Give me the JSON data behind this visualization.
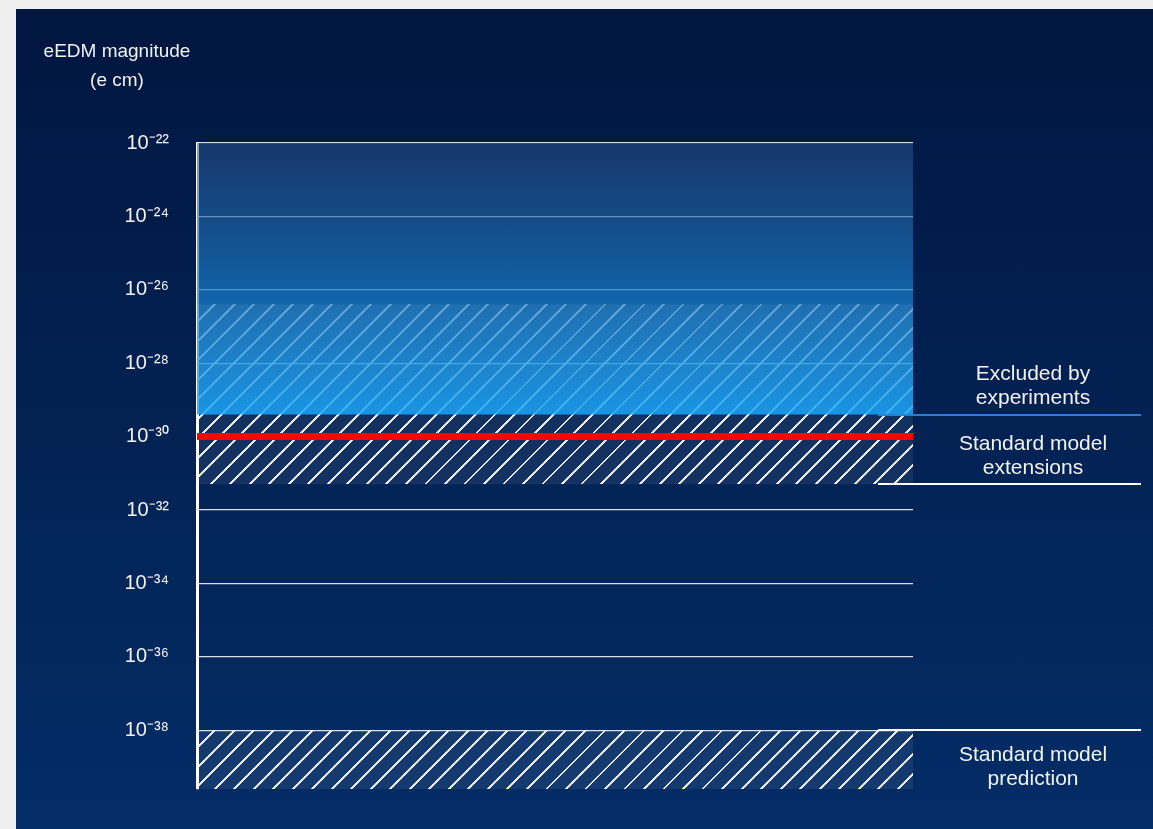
{
  "chart_data": {
    "type": "line",
    "categories": [
      null
    ],
    "ylabel": "eEDM magnitude (e cm)",
    "log": "y",
    "grid": "y",
    "ylim": [
      2.5e-40,
      1e-22
    ],
    "yticks": [
      {
        "value": 1e-22,
        "label": "10⁻²²"
      },
      {
        "value": 1e-24,
        "label": "10⁻²⁴"
      },
      {
        "value": 1e-26,
        "label": "10⁻²⁶"
      },
      {
        "value": 1e-28,
        "label": "10⁻²⁸"
      },
      {
        "value": 1e-30,
        "label": "10⁻³⁰"
      },
      {
        "value": 1e-32,
        "label": "10⁻³²"
      },
      {
        "value": 1e-34,
        "label": "10⁻³⁴"
      },
      {
        "value": 1e-36,
        "label": "10⁻³⁶"
      },
      {
        "value": 1e-38,
        "label": "10⁻³⁸"
      }
    ],
    "bands": [
      {
        "axis": "y",
        "from": 4e-30,
        "to": 1e-22,
        "label": "Excluded by experiments",
        "color": "#0aa0fa"
      },
      {
        "axis": "y",
        "from": 5e-32,
        "to": 4e-27,
        "label": "Standard model extensions",
        "color": "#ffffff"
      },
      {
        "axis": "y",
        "from": 2.5e-40,
        "to": 1e-38,
        "label": "Standard model prediction",
        "color": "#ffffff"
      }
    ],
    "ref_lines": [
      {
        "axis": "y",
        "value": 1e-30,
        "color": "#ff0000"
      }
    ]
  }
}
